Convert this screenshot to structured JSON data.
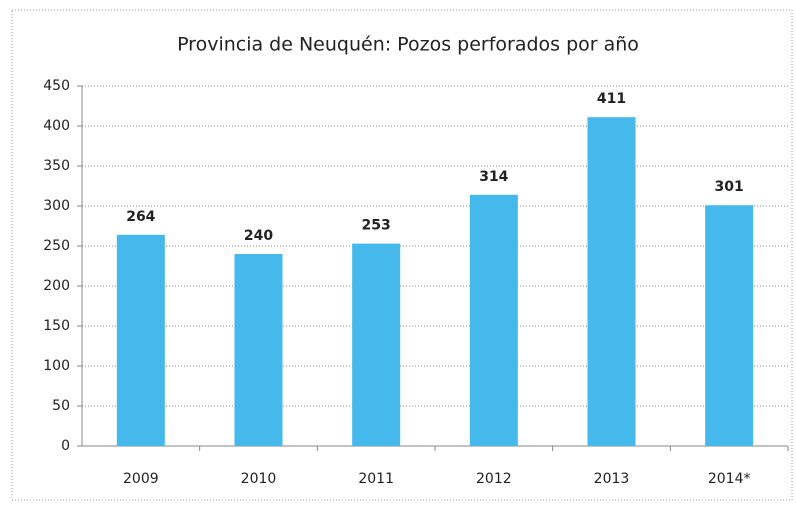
{
  "chart_data": {
    "type": "bar",
    "title": "Provincia de Neuquén: Pozos perforados por año",
    "categories": [
      "2009",
      "2010",
      "2011",
      "2012",
      "2013",
      "2014*"
    ],
    "values": [
      264,
      240,
      253,
      314,
      411,
      301
    ],
    "color": "#45b9ec",
    "ylim": [
      0,
      450
    ],
    "yticks": [
      0,
      50,
      100,
      150,
      200,
      250,
      300,
      350,
      400,
      450
    ],
    "grid": true
  }
}
